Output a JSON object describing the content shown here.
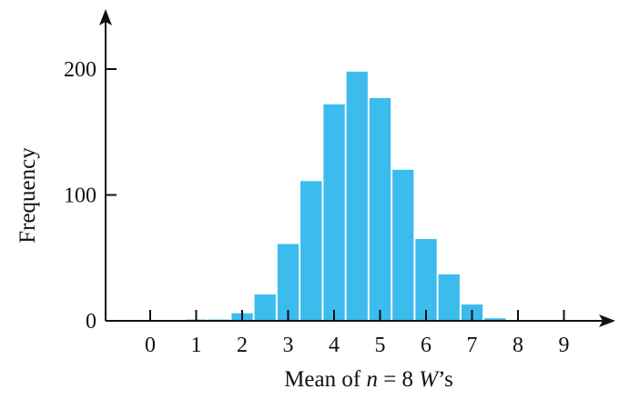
{
  "chart_data": {
    "type": "bar",
    "title": "",
    "xlabel": {
      "prefix": "Mean of ",
      "var_n": "n",
      "middle": " = 8 ",
      "var_w": "W",
      "suffix": "’s"
    },
    "ylabel": "Frequency",
    "xlim": [
      -1,
      10
    ],
    "ylim": [
      0,
      240
    ],
    "x_ticks": [
      0,
      1,
      2,
      3,
      4,
      5,
      6,
      7,
      8,
      9
    ],
    "y_ticks": [
      0,
      100,
      200
    ],
    "bin_width": 0.5,
    "bins": [
      {
        "start": 0.75,
        "value": 1
      },
      {
        "start": 1.25,
        "value": 1
      },
      {
        "start": 1.75,
        "value": 6
      },
      {
        "start": 2.25,
        "value": 21
      },
      {
        "start": 2.75,
        "value": 61
      },
      {
        "start": 3.25,
        "value": 111
      },
      {
        "start": 3.75,
        "value": 172
      },
      {
        "start": 4.25,
        "value": 198
      },
      {
        "start": 4.75,
        "value": 177
      },
      {
        "start": 5.25,
        "value": 120
      },
      {
        "start": 5.75,
        "value": 65
      },
      {
        "start": 6.25,
        "value": 37
      },
      {
        "start": 6.75,
        "value": 13
      },
      {
        "start": 7.25,
        "value": 2
      }
    ],
    "bar_color": "#3bbcec",
    "grid": false,
    "legend": "none"
  }
}
